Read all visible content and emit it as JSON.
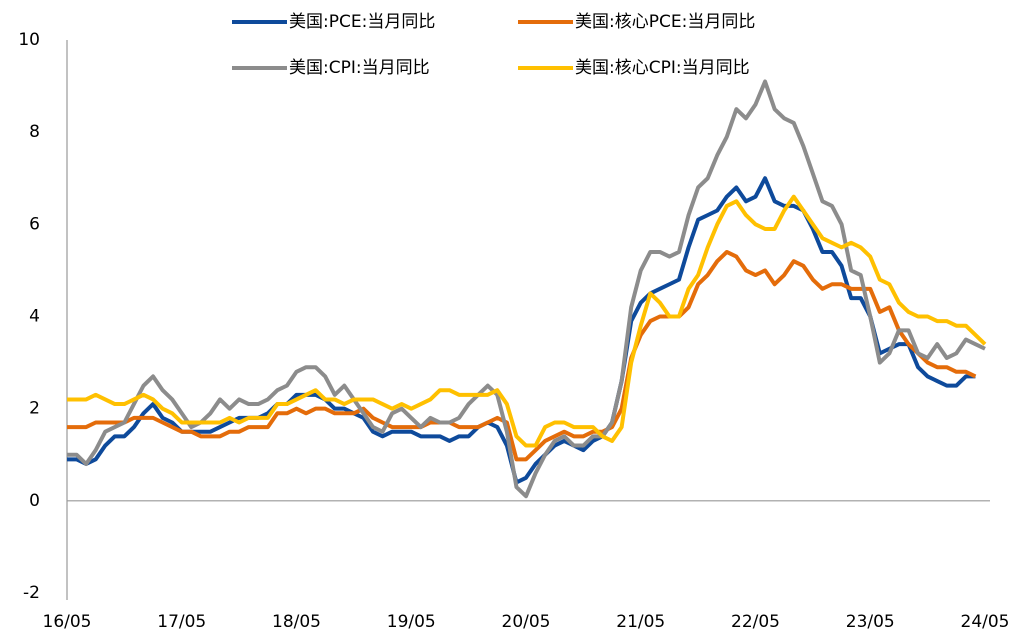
{
  "chart_data": {
    "type": "line",
    "categories": [
      "16/05",
      null,
      null,
      null,
      null,
      null,
      null,
      null,
      null,
      null,
      null,
      null,
      "17/05",
      null,
      null,
      null,
      null,
      null,
      null,
      null,
      null,
      null,
      null,
      null,
      "18/05",
      null,
      null,
      null,
      null,
      null,
      null,
      null,
      null,
      null,
      null,
      null,
      "19/05",
      null,
      null,
      null,
      null,
      null,
      null,
      null,
      null,
      null,
      null,
      null,
      "20/05",
      null,
      null,
      null,
      null,
      null,
      null,
      null,
      null,
      null,
      null,
      null,
      "21/05",
      null,
      null,
      null,
      null,
      null,
      null,
      null,
      null,
      null,
      null,
      null,
      "22/05",
      null,
      null,
      null,
      null,
      null,
      null,
      null,
      null,
      null,
      null,
      null,
      "23/05",
      null,
      null,
      null,
      null,
      null,
      null,
      null,
      null,
      null,
      null,
      null,
      "24/05"
    ],
    "series": [
      {
        "name": "美国:PCE:当月同比",
        "color": "#0e4a9b",
        "values": [
          0.9,
          0.9,
          0.8,
          0.9,
          1.2,
          1.4,
          1.4,
          1.6,
          1.9,
          2.1,
          1.8,
          1.7,
          1.5,
          1.5,
          1.5,
          1.5,
          1.6,
          1.7,
          1.8,
          1.8,
          1.8,
          1.9,
          2.1,
          2.1,
          2.3,
          2.3,
          2.3,
          2.2,
          2.0,
          2.0,
          1.9,
          1.8,
          1.5,
          1.4,
          1.5,
          1.5,
          1.5,
          1.4,
          1.4,
          1.4,
          1.3,
          1.4,
          1.4,
          1.6,
          1.7,
          1.6,
          1.2,
          0.4,
          0.5,
          0.8,
          1.0,
          1.2,
          1.3,
          1.2,
          1.1,
          1.3,
          1.4,
          1.7,
          2.6,
          3.9,
          4.3,
          4.5,
          4.6,
          4.7,
          4.8,
          5.5,
          6.1,
          6.2,
          6.3,
          6.6,
          6.8,
          6.5,
          6.6,
          7.0,
          6.5,
          6.4,
          6.4,
          6.3,
          5.9,
          5.4,
          5.4,
          5.1,
          4.4,
          4.4,
          4.0,
          3.2,
          3.3,
          3.4,
          3.4,
          2.9,
          2.7,
          2.6,
          2.5,
          2.5,
          2.7,
          2.7,
          null
        ]
      },
      {
        "name": "美国:核心PCE:当月同比",
        "color": "#e46c0a",
        "values": [
          1.6,
          1.6,
          1.6,
          1.7,
          1.7,
          1.7,
          1.7,
          1.8,
          1.8,
          1.8,
          1.7,
          1.6,
          1.5,
          1.5,
          1.4,
          1.4,
          1.4,
          1.5,
          1.5,
          1.6,
          1.6,
          1.6,
          1.9,
          1.9,
          2.0,
          1.9,
          2.0,
          2.0,
          1.9,
          1.9,
          1.9,
          2.0,
          1.8,
          1.7,
          1.6,
          1.6,
          1.6,
          1.6,
          1.7,
          1.7,
          1.7,
          1.6,
          1.6,
          1.6,
          1.7,
          1.8,
          1.7,
          0.9,
          0.9,
          1.1,
          1.3,
          1.4,
          1.5,
          1.4,
          1.4,
          1.5,
          1.5,
          1.6,
          2.0,
          3.1,
          3.6,
          3.9,
          4.0,
          4.0,
          4.0,
          4.2,
          4.7,
          4.9,
          5.2,
          5.4,
          5.3,
          5.0,
          4.9,
          5.0,
          4.7,
          4.9,
          5.2,
          5.1,
          4.8,
          4.6,
          4.7,
          4.7,
          4.6,
          4.6,
          4.6,
          4.1,
          4.2,
          3.7,
          3.4,
          3.2,
          3.0,
          2.9,
          2.9,
          2.8,
          2.8,
          2.7,
          null
        ]
      },
      {
        "name": "美国:CPI:当月同比",
        "color": "#8c8c8c",
        "values": [
          1.0,
          1.0,
          0.8,
          1.1,
          1.5,
          1.6,
          1.7,
          2.1,
          2.5,
          2.7,
          2.4,
          2.2,
          1.9,
          1.6,
          1.7,
          1.9,
          2.2,
          2.0,
          2.2,
          2.1,
          2.1,
          2.2,
          2.4,
          2.5,
          2.8,
          2.9,
          2.9,
          2.7,
          2.3,
          2.5,
          2.2,
          1.9,
          1.6,
          1.5,
          1.9,
          2.0,
          1.8,
          1.6,
          1.8,
          1.7,
          1.7,
          1.8,
          2.1,
          2.3,
          2.5,
          2.3,
          1.5,
          0.3,
          0.1,
          0.6,
          1.0,
          1.3,
          1.4,
          1.2,
          1.2,
          1.4,
          1.4,
          1.7,
          2.6,
          4.2,
          5.0,
          5.4,
          5.4,
          5.3,
          5.4,
          6.2,
          6.8,
          7.0,
          7.5,
          7.9,
          8.5,
          8.3,
          8.6,
          9.1,
          8.5,
          8.3,
          8.2,
          7.7,
          7.1,
          6.5,
          6.4,
          6.0,
          5.0,
          4.9,
          4.0,
          3.0,
          3.2,
          3.7,
          3.7,
          3.2,
          3.1,
          3.4,
          3.1,
          3.2,
          3.5,
          3.4,
          3.3
        ]
      },
      {
        "name": "美国:核心CPI:当月同比",
        "color": "#ffc000",
        "values": [
          2.2,
          2.2,
          2.2,
          2.3,
          2.2,
          2.1,
          2.1,
          2.2,
          2.3,
          2.2,
          2.0,
          1.9,
          1.7,
          1.7,
          1.7,
          1.7,
          1.7,
          1.8,
          1.7,
          1.8,
          1.8,
          1.8,
          2.1,
          2.1,
          2.2,
          2.3,
          2.4,
          2.2,
          2.2,
          2.1,
          2.2,
          2.2,
          2.2,
          2.1,
          2.0,
          2.1,
          2.0,
          2.1,
          2.2,
          2.4,
          2.4,
          2.3,
          2.3,
          2.3,
          2.3,
          2.4,
          2.1,
          1.4,
          1.2,
          1.2,
          1.6,
          1.7,
          1.7,
          1.6,
          1.6,
          1.6,
          1.4,
          1.3,
          1.6,
          3.0,
          3.8,
          4.5,
          4.3,
          4.0,
          4.0,
          4.6,
          4.9,
          5.5,
          6.0,
          6.4,
          6.5,
          6.2,
          6.0,
          5.9,
          5.9,
          6.3,
          6.6,
          6.3,
          6.0,
          5.7,
          5.6,
          5.5,
          5.6,
          5.5,
          5.3,
          4.8,
          4.7,
          4.3,
          4.1,
          4.0,
          4.0,
          3.9,
          3.9,
          3.8,
          3.8,
          3.6,
          3.4
        ]
      }
    ],
    "ylim": [
      -2,
      10
    ],
    "yticks": [
      -2,
      0,
      2,
      4,
      6,
      8,
      10
    ],
    "grid": false,
    "legend": "top"
  }
}
